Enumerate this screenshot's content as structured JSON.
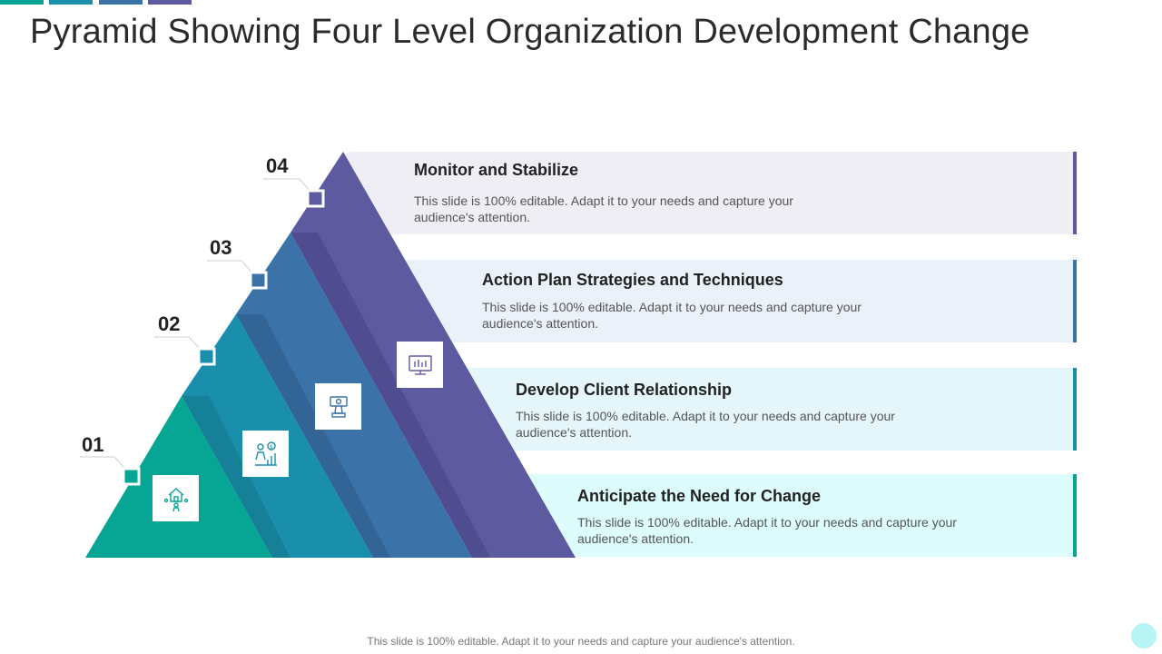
{
  "title": "Pyramid Showing Four Level Organization Development Change",
  "colors": {
    "teal": "#07a594",
    "cyan": "#1a8fac",
    "blue": "#3b73a8",
    "purple": "#5d5aa0",
    "panel_purple": "#efeef4",
    "panel_blue": "#eaf1f8",
    "panel_cyan": "#e5f6fb",
    "panel_teal": "#dcfdfb"
  },
  "levels": [
    {
      "number": "04",
      "heading": "Monitor and Stabilize",
      "text": "This slide is 100% editable. Adapt it to your needs and capture your audience's attention.",
      "icon": "monitor-chart-icon"
    },
    {
      "number": "03",
      "heading": "Action Plan Strategies and Techniques",
      "text": "This slide is 100% editable. Adapt it to your needs and capture your audience's attention.",
      "icon": "chess-strategy-icon"
    },
    {
      "number": "02",
      "heading": "Develop Client Relationship",
      "text": "This slide is 100% editable. Adapt it to your needs and capture your audience's attention.",
      "icon": "client-growth-icon"
    },
    {
      "number": "01",
      "heading": "Anticipate the Need for Change",
      "text": "This slide is 100% editable. Adapt it to your needs and capture your audience's attention.",
      "icon": "home-people-icon"
    }
  ],
  "footer": "This slide is 100% editable. Adapt it to your needs and capture your audience's attention."
}
